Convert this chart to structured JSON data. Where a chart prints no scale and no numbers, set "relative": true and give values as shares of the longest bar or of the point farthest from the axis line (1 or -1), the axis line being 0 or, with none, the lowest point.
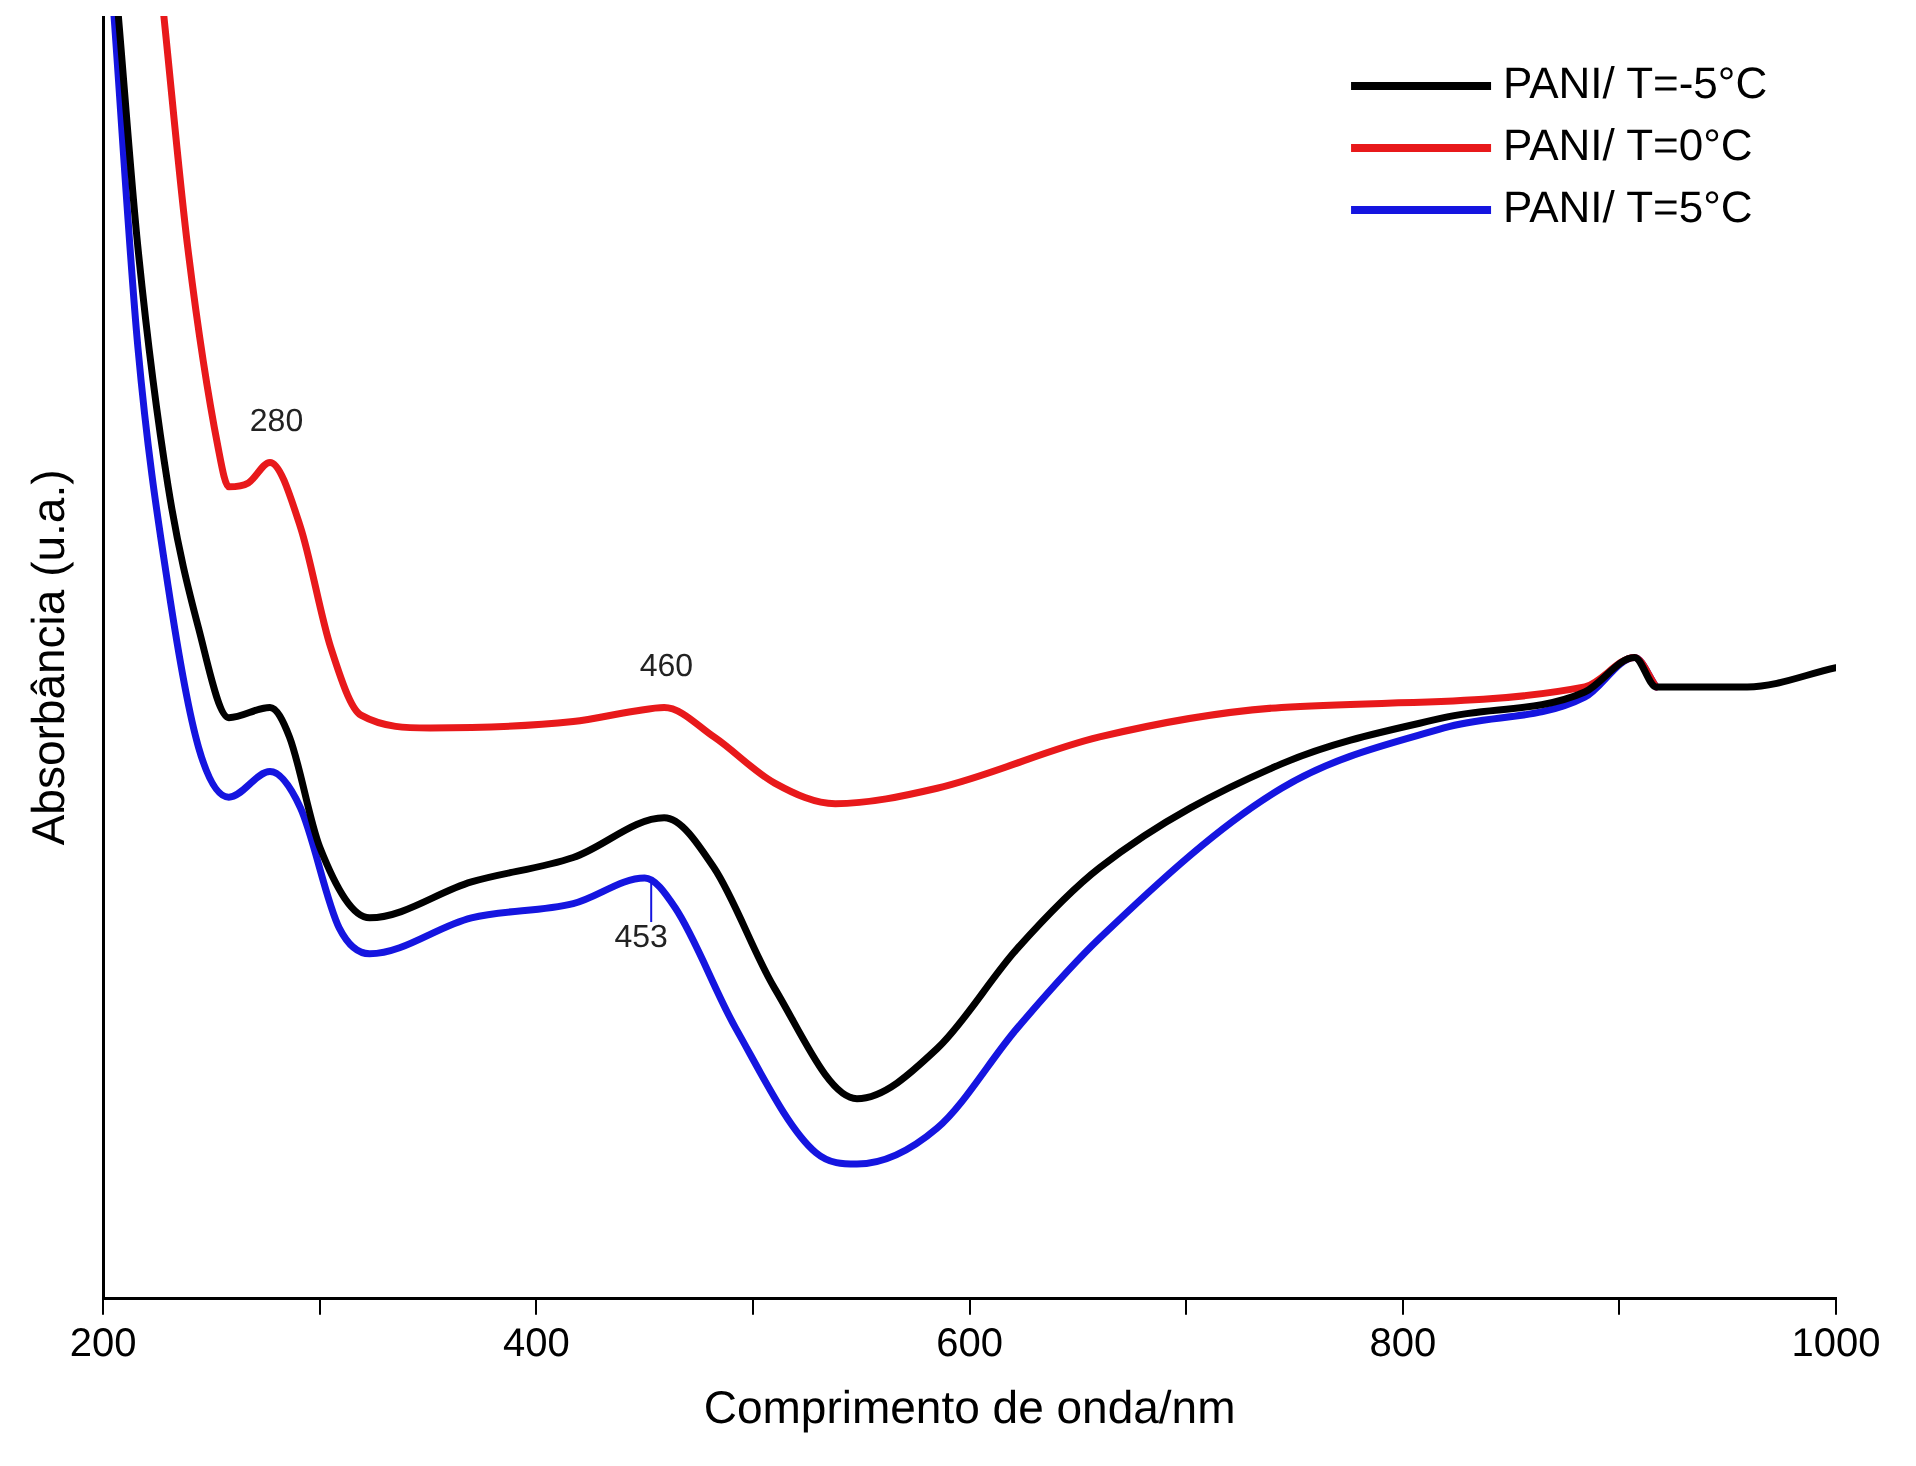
{
  "chart_data": {
    "type": "line",
    "relative": true,
    "xlabel": "Comprimento de onda/nm",
    "ylabel": "Absorbância (u.a.)",
    "xlim": [
      200,
      1000
    ],
    "xticks": [
      200,
      {
        "value": 300,
        "label": null
      },
      400,
      {
        "value": 500,
        "label": null
      },
      600,
      {
        "value": 700,
        "label": null
      },
      800,
      {
        "value": 900,
        "label": null
      },
      1000
    ],
    "legend": "top right",
    "grid": false,
    "marker": "none",
    "line_style": "solid",
    "annotations": [
      {
        "text": "280",
        "x": 280,
        "y": 0.652
      },
      {
        "text": "460",
        "x": 460,
        "y": 0.461
      },
      {
        "text": "453",
        "x": 453,
        "y": 0.328
      }
    ],
    "series": [
      {
        "name": "PANI/ T=-5°C",
        "color": "#000000",
        "x": [
          207,
          216,
          230,
          244,
          258,
          277,
          286,
          300,
          323,
          370,
          417,
          459,
          482,
          510,
          548,
          585,
          622,
          660,
          744,
          819,
          884,
          907,
          917,
          959,
          1000
        ],
        "values": [
          1.0,
          0.82,
          0.633,
          0.523,
          0.453,
          0.461,
          0.438,
          0.352,
          0.297,
          0.325,
          0.344,
          0.375,
          0.336,
          0.242,
          0.156,
          0.195,
          0.273,
          0.336,
          0.417,
          0.453,
          0.473,
          0.5,
          0.477,
          0.477,
          0.492
        ]
      },
      {
        "name": "PANI/ T=0°C",
        "color": "#e8191b",
        "x": [
          228,
          239,
          253,
          258,
          267,
          277,
          291,
          305,
          319,
          351,
          417,
          445,
          459,
          482,
          510,
          538,
          585,
          660,
          744,
          884,
          907,
          917
        ],
        "values": [
          1.0,
          0.82,
          0.664,
          0.633,
          0.636,
          0.652,
          0.602,
          0.508,
          0.455,
          0.445,
          0.45,
          0.458,
          0.461,
          0.438,
          0.402,
          0.386,
          0.398,
          0.438,
          0.461,
          0.477,
          0.5,
          0.477
        ]
      },
      {
        "name": "PANI/ T=5°C",
        "color": "#1515e0",
        "x": [
          205,
          216,
          230,
          244,
          258,
          277,
          291,
          309,
          323,
          370,
          417,
          450,
          464,
          492,
          529,
          548,
          585,
          622,
          660,
          744,
          819,
          884,
          907,
          917
        ],
        "values": [
          1.0,
          0.742,
          0.555,
          0.43,
          0.391,
          0.411,
          0.383,
          0.289,
          0.269,
          0.297,
          0.308,
          0.328,
          0.305,
          0.211,
          0.114,
          0.105,
          0.133,
          0.211,
          0.281,
          0.398,
          0.445,
          0.469,
          0.5,
          0.477
        ]
      }
    ]
  }
}
